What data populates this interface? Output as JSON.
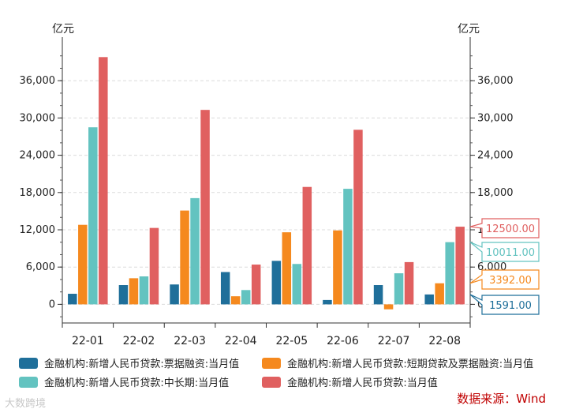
{
  "chart_data": {
    "type": "bar",
    "categories": [
      "22-01",
      "22-02",
      "22-03",
      "22-04",
      "22-05",
      "22-06",
      "22-07",
      "22-08"
    ],
    "series": [
      {
        "name": "金融机构:新增人民币贷款:票据融资:当月值",
        "color": "#1f6f9a",
        "values": [
          1700,
          3100,
          3200,
          5200,
          7000,
          700,
          3100,
          1591
        ]
      },
      {
        "name": "金融机构:新增人民币贷款:短期贷款及票据融资:当月值",
        "color": "#f5891e",
        "values": [
          12800,
          4200,
          15100,
          1300,
          11600,
          11900,
          -800,
          3392
        ]
      },
      {
        "name": "金融机构:新增人民币贷款:中长期:当月值",
        "color": "#63c3c0",
        "values": [
          28500,
          4500,
          17100,
          2300,
          6500,
          18600,
          5000,
          10011
        ]
      },
      {
        "name": "金融机构:新增人民币贷款:当月值",
        "color": "#e06060",
        "values": [
          39800,
          12300,
          31300,
          6400,
          18900,
          28100,
          6800,
          12500
        ]
      }
    ],
    "y_unit_left": "亿元",
    "y_unit_right": "亿元",
    "ylim": [
      -3000,
      42000
    ],
    "ticks": [
      0,
      6000,
      12000,
      18000,
      24000,
      30000,
      36000
    ],
    "tick_labels": [
      "0",
      "6,000",
      "12,000",
      "18,000",
      "24,000",
      "30,000",
      "36,000"
    ],
    "grid": true,
    "legend_position": "bottom",
    "end_labels": [
      {
        "text": "12500.00",
        "series": 3,
        "color": "#e06060"
      },
      {
        "text": "10011.00",
        "series": 2,
        "color": "#63c3c0"
      },
      {
        "text": "3392.00",
        "series": 1,
        "color": "#f5891e"
      },
      {
        "text": "1591.00",
        "series": 0,
        "color": "#1f6f9a"
      }
    ]
  },
  "source": "数据来源：Wind",
  "watermark": "大数跨境"
}
